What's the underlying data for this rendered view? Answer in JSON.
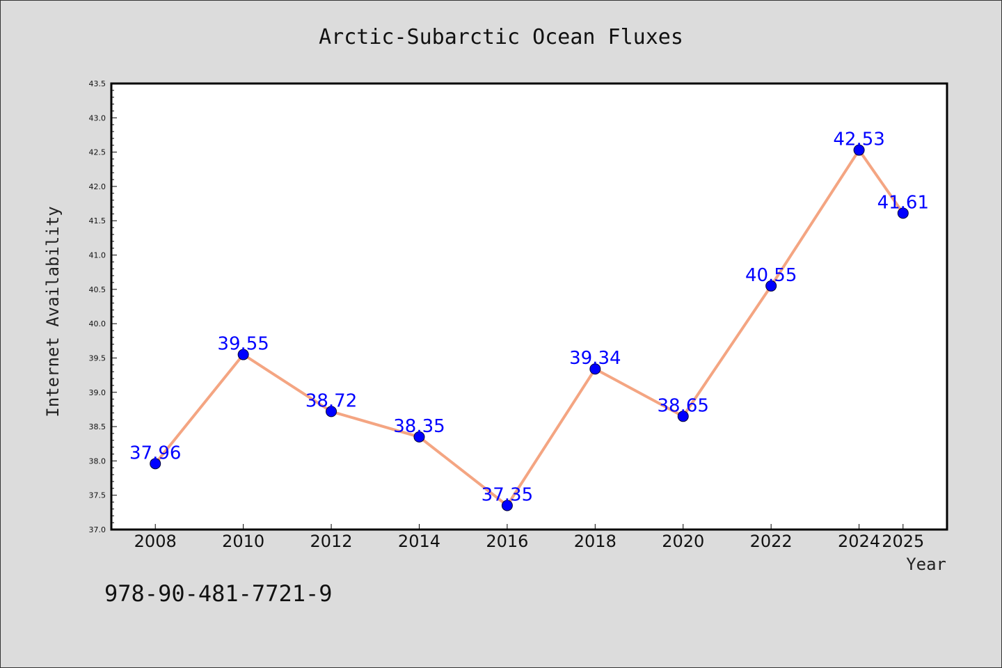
{
  "colors": {
    "background": "#dcdcdc",
    "plot_background": "#ffffff",
    "line": "#f4a582",
    "marker": "#0000ff",
    "data_label": "#0000ff"
  },
  "footer_text": "978-90-481-7721-9",
  "chart_data": {
    "type": "line",
    "title": "Arctic-Subarctic Ocean Fluxes",
    "xlabel": "Year",
    "ylabel": "Internet Availability",
    "ylim": [
      37.0,
      43.5
    ],
    "xlim": [
      2007,
      2026
    ],
    "yticks": [
      "37.0",
      "37.5",
      "38.0",
      "38.5",
      "39.0",
      "39.5",
      "40.0",
      "40.5",
      "41.0",
      "41.5",
      "42.0",
      "42.5",
      "43.0",
      "43.5"
    ],
    "xticks": [
      "2008",
      "2010",
      "2012",
      "2014",
      "2016",
      "2018",
      "2020",
      "2022",
      "2024",
      "2025"
    ],
    "x": [
      2008,
      2010,
      2012,
      2014,
      2016,
      2018,
      2020,
      2022,
      2024,
      2025
    ],
    "values": [
      37.96,
      39.55,
      38.72,
      38.35,
      37.35,
      39.34,
      38.65,
      40.55,
      42.53,
      41.61
    ],
    "data_labels": [
      "37.96",
      "39.55",
      "38.72",
      "38.35",
      "37.35",
      "39.34",
      "38.65",
      "40.55",
      "42.53",
      "41.61"
    ],
    "grid": false,
    "legend": "none"
  }
}
